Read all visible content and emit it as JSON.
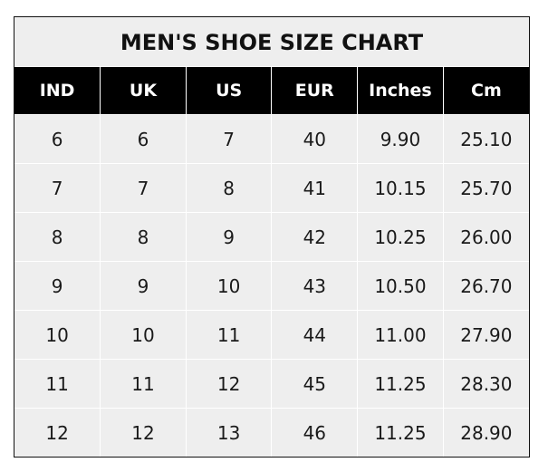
{
  "title": "MEN'S SHOE SIZE CHART",
  "headers": [
    "IND",
    "UK",
    "US",
    "EUR",
    "Inches",
    "Cm"
  ],
  "rows": [
    [
      "6",
      "6",
      "7",
      "40",
      "9.90",
      "25.10"
    ],
    [
      "7",
      "7",
      "8",
      "41",
      "10.15",
      "25.70"
    ],
    [
      "8",
      "8",
      "9",
      "42",
      "10.25",
      "26.00"
    ],
    [
      "9",
      "9",
      "10",
      "43",
      "10.50",
      "26.70"
    ],
    [
      "10",
      "10",
      "11",
      "44",
      "11.00",
      "27.90"
    ],
    [
      "11",
      "11",
      "12",
      "45",
      "11.25",
      "28.30"
    ],
    [
      "12",
      "12",
      "13",
      "46",
      "11.25",
      "28.90"
    ]
  ],
  "colors": {
    "header_bg": "#000000",
    "header_text": "#ffffff",
    "cell_bg": "#eeeeee"
  }
}
